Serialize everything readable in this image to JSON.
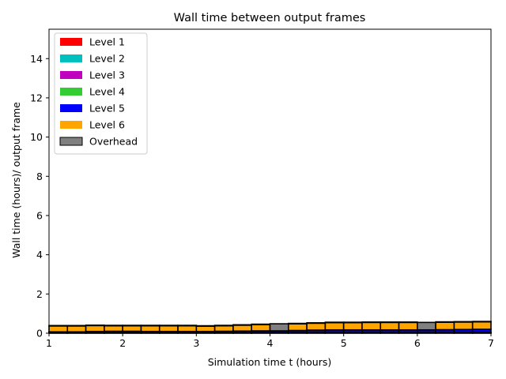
{
  "chart_data": {
    "type": "bar",
    "stacked": true,
    "title": "Wall time between output frames",
    "xlabel": "Simulation time t (hours)",
    "ylabel": "Wall time (hours)/ output frame",
    "xlim": [
      1,
      7
    ],
    "ylim": [
      0,
      15.5
    ],
    "xticks": [
      1,
      2,
      3,
      4,
      5,
      6,
      7
    ],
    "yticks": [
      0,
      2,
      4,
      6,
      8,
      10,
      12,
      14
    ],
    "grid": false,
    "legend_position": "top-left",
    "bin_edges": [
      1.0,
      1.25,
      1.5,
      1.75,
      2.0,
      2.25,
      2.5,
      2.75,
      3.0,
      3.25,
      3.5,
      3.75,
      4.0,
      4.25,
      4.5,
      4.75,
      5.0,
      5.25,
      5.5,
      5.75,
      6.0,
      6.25,
      6.5,
      6.75,
      7.0
    ],
    "series": [
      {
        "name": "Level 1",
        "color": "#ff0000",
        "values": [
          0.01,
          0.01,
          0.01,
          0.01,
          0.01,
          0.01,
          0.01,
          0.01,
          0.01,
          0.01,
          0.01,
          0.01,
          0.01,
          0.01,
          0.01,
          0.01,
          0.01,
          0.01,
          0.01,
          0.01,
          0.01,
          0.01,
          0.01,
          0.01
        ]
      },
      {
        "name": "Level 2",
        "color": "#00bfbf",
        "values": [
          0.01,
          0.01,
          0.01,
          0.01,
          0.01,
          0.01,
          0.01,
          0.01,
          0.01,
          0.01,
          0.01,
          0.01,
          0.01,
          0.01,
          0.01,
          0.01,
          0.01,
          0.01,
          0.01,
          0.01,
          0.01,
          0.01,
          0.01,
          0.01
        ]
      },
      {
        "name": "Level 3",
        "color": "#bf00bf",
        "values": [
          0.01,
          0.01,
          0.01,
          0.01,
          0.01,
          0.01,
          0.01,
          0.01,
          0.01,
          0.01,
          0.01,
          0.01,
          0.01,
          0.01,
          0.01,
          0.01,
          0.01,
          0.01,
          0.01,
          0.01,
          0.01,
          0.01,
          0.01,
          0.01
        ]
      },
      {
        "name": "Level 4",
        "color": "#33cc33",
        "values": [
          0.01,
          0.01,
          0.01,
          0.01,
          0.01,
          0.01,
          0.01,
          0.01,
          0.01,
          0.01,
          0.01,
          0.01,
          0.01,
          0.01,
          0.01,
          0.01,
          0.01,
          0.01,
          0.01,
          0.01,
          0.01,
          0.01,
          0.01,
          0.01
        ]
      },
      {
        "name": "Level 5",
        "color": "#0000ff",
        "values": [
          0.03,
          0.03,
          0.05,
          0.06,
          0.06,
          0.05,
          0.05,
          0.05,
          0.05,
          0.06,
          0.07,
          0.08,
          0.08,
          0.1,
          0.12,
          0.13,
          0.13,
          0.13,
          0.13,
          0.13,
          0.13,
          0.14,
          0.15,
          0.16
        ]
      },
      {
        "name": "Level 6",
        "color": "#ffa500",
        "values": [
          0.3,
          0.3,
          0.3,
          0.28,
          0.28,
          0.29,
          0.29,
          0.29,
          0.27,
          0.28,
          0.3,
          0.32,
          0.0,
          0.34,
          0.35,
          0.37,
          0.37,
          0.38,
          0.38,
          0.38,
          0.0,
          0.38,
          0.38,
          0.38
        ]
      },
      {
        "name": "Overhead",
        "color": "#808080",
        "values": [
          0.02,
          0.02,
          0.02,
          0.02,
          0.02,
          0.02,
          0.02,
          0.02,
          0.02,
          0.02,
          0.02,
          0.02,
          0.36,
          0.02,
          0.02,
          0.02,
          0.02,
          0.02,
          0.02,
          0.02,
          0.38,
          0.02,
          0.02,
          0.02
        ]
      }
    ]
  }
}
